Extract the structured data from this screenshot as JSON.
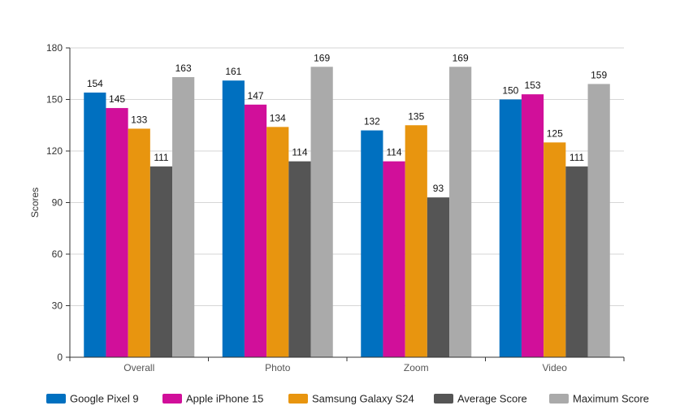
{
  "chart_data": {
    "type": "bar",
    "title": "",
    "xlabel": "",
    "ylabel": "Scores",
    "ylim": [
      0,
      180
    ],
    "yticks": [
      0,
      30,
      60,
      90,
      120,
      150,
      180
    ],
    "grid": true,
    "legend_position": "bottom",
    "categories": [
      "Overall",
      "Photo",
      "Zoom",
      "Video"
    ],
    "series": [
      {
        "name": "Google Pixel 9",
        "color": "#0070C0",
        "values": [
          154,
          161,
          132,
          150
        ]
      },
      {
        "name": "Apple iPhone 15",
        "color": "#D10F9A",
        "values": [
          145,
          147,
          114,
          153
        ]
      },
      {
        "name": "Samsung Galaxy S24",
        "color": "#E8950F",
        "values": [
          133,
          134,
          135,
          125
        ]
      },
      {
        "name": "Average Score",
        "color": "#555555",
        "values": [
          111,
          114,
          93,
          111
        ]
      },
      {
        "name": "Maximum Score",
        "color": "#AAAAAA",
        "values": [
          163,
          169,
          169,
          159
        ]
      }
    ]
  }
}
